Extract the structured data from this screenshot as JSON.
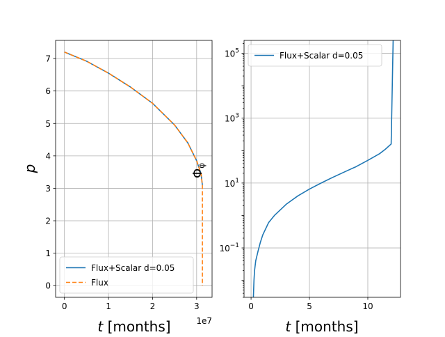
{
  "figure": {
    "background": "#ffffff"
  },
  "chart_data": [
    {
      "type": "line",
      "xlabel_sym": "t",
      "xlabel_unit": " [months]",
      "ylabel": "p",
      "offset_text": "1e7",
      "annotation": "Φ_φ",
      "xlim": [
        -2000000,
        33500000
      ],
      "ylim": [
        -0.36,
        7.56
      ],
      "yscale": "linear",
      "grid": true,
      "legend_position": "lower-left",
      "xticks": [
        {
          "v": 0,
          "label": "0"
        },
        {
          "v": 10000000,
          "label": "1"
        },
        {
          "v": 20000000,
          "label": "2"
        },
        {
          "v": 30000000,
          "label": "3"
        }
      ],
      "yticks": [
        {
          "v": 0,
          "label": "0"
        },
        {
          "v": 1,
          "label": "1"
        },
        {
          "v": 2,
          "label": "2"
        },
        {
          "v": 3,
          "label": "3"
        },
        {
          "v": 4,
          "label": "4"
        },
        {
          "v": 5,
          "label": "5"
        },
        {
          "v": 6,
          "label": "6"
        },
        {
          "v": 7,
          "label": "7"
        }
      ],
      "series": [
        {
          "name": "Flux+Scalar d=0.05",
          "color": "#1f77b4",
          "dash": "none",
          "x": [
            0,
            5000000,
            10000000,
            15000000,
            20000000,
            25000000,
            28000000,
            30000000,
            31000000,
            31300000
          ],
          "y": [
            7.2,
            6.92,
            6.55,
            6.12,
            5.62,
            4.95,
            4.4,
            3.85,
            3.45,
            3.1
          ]
        },
        {
          "name": "Flux",
          "color": "#ff7f0e",
          "dash": "6,3",
          "x": [
            0,
            5000000,
            10000000,
            15000000,
            20000000,
            25000000,
            28000000,
            30000000,
            31000000,
            31300000,
            31300000
          ],
          "y": [
            7.2,
            6.92,
            6.55,
            6.12,
            5.62,
            4.95,
            4.4,
            3.85,
            3.45,
            3.1,
            0
          ]
        }
      ]
    },
    {
      "type": "line",
      "xlabel_sym": "t",
      "xlabel_unit": " [months]",
      "ylabel": "",
      "xlim": [
        -0.6,
        12.8
      ],
      "ylim": [
        0.003,
        250000
      ],
      "yscale": "log",
      "grid": true,
      "legend_position": "top-left",
      "xticks": [
        {
          "v": 0,
          "label": "0"
        },
        {
          "v": 5,
          "label": "5"
        },
        {
          "v": 10,
          "label": "10"
        }
      ],
      "yticks": [
        {
          "v": 0.1,
          "base": "10",
          "exp": "−1"
        },
        {
          "v": 10,
          "base": "10",
          "exp": "1"
        },
        {
          "v": 1000,
          "base": "10",
          "exp": "3"
        },
        {
          "v": 100000,
          "base": "10",
          "exp": "5"
        }
      ],
      "series": [
        {
          "name": "Flux+Scalar d=0.05",
          "color": "#1f77b4",
          "dash": "none",
          "x": [
            0.2,
            0.25,
            0.3,
            0.4,
            0.6,
            0.8,
            1,
            1.5,
            2,
            3,
            4,
            5,
            6,
            7,
            8,
            9,
            10,
            11,
            11.5,
            12,
            12.2
          ],
          "y": [
            0.003,
            0.01,
            0.02,
            0.04,
            0.08,
            0.15,
            0.25,
            0.6,
            1.0,
            2.2,
            4.0,
            6.5,
            10,
            15,
            22,
            32,
            50,
            80,
            110,
            160,
            900000
          ]
        }
      ]
    }
  ]
}
